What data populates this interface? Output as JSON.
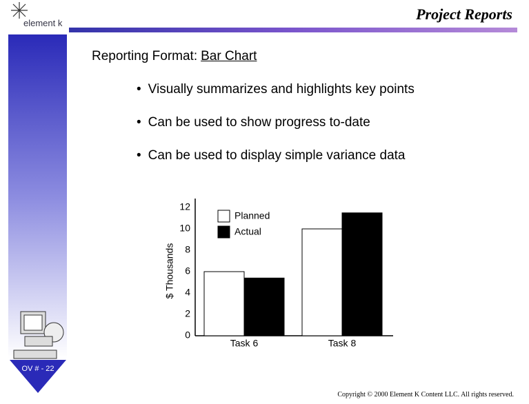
{
  "header": {
    "title": "Project Reports",
    "logo": "element k"
  },
  "slide": {
    "heading": "Reporting Format:",
    "heading_emphasis": "Bar Chart",
    "bullets": [
      "Visually summarizes and highlights key points",
      "Can be used to show progress to-date",
      "Can be used to display simple variance data"
    ]
  },
  "chart_data": {
    "type": "bar",
    "categories": [
      "Task 6",
      "Task 8"
    ],
    "series": [
      {
        "name": "Planned",
        "color": "#ffffff",
        "values": [
          6,
          10
        ]
      },
      {
        "name": "Actual",
        "color": "#000000",
        "values": [
          5.4,
          11.5
        ]
      }
    ],
    "ylabel": "$ Thousands",
    "ylim": [
      0,
      12
    ],
    "yticks": [
      0,
      2,
      4,
      6,
      8,
      10,
      12
    ],
    "legend": "upper-left"
  },
  "footer": {
    "slide_number": "OV # - 22",
    "copyright": "Copyright © 2000 Element K Content LLC. All rights reserved."
  }
}
